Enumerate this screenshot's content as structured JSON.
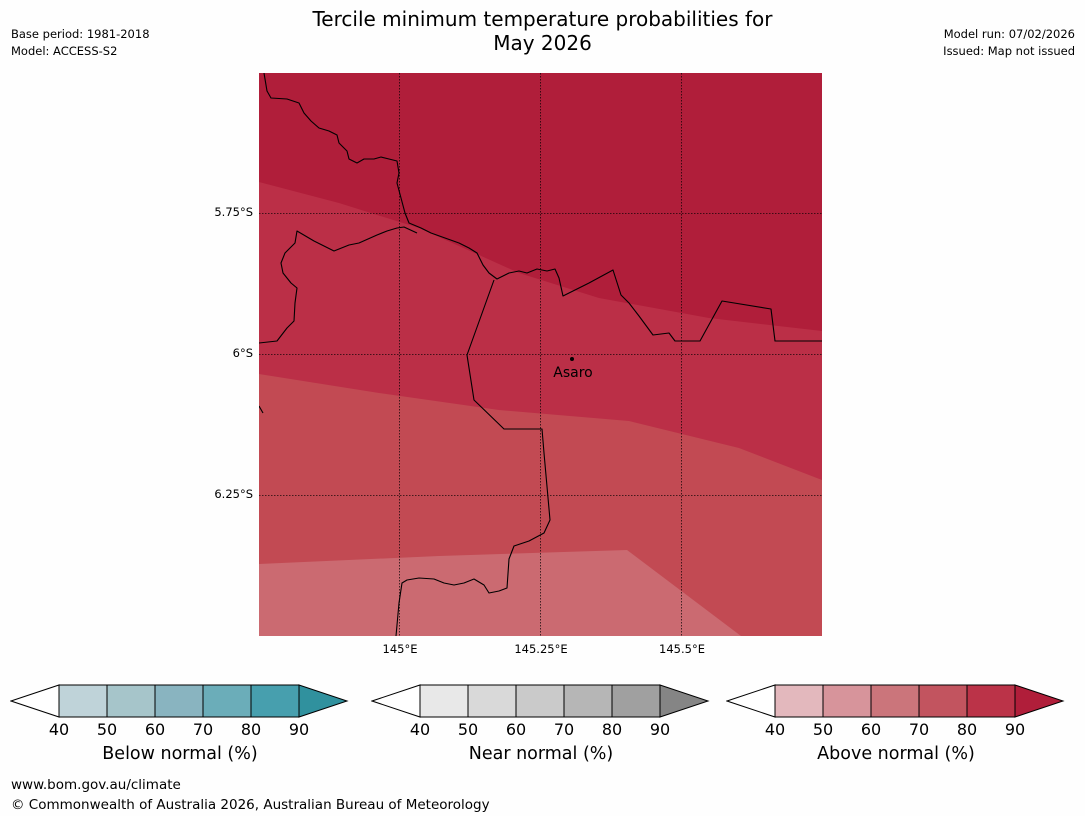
{
  "title_line1": "Tercile minimum temperature probabilities for",
  "title_line2": "May 2026",
  "meta_left": [
    "Base period: 1981-2018",
    "Model: ACCESS-S2"
  ],
  "meta_right": [
    "Model run: 07/02/2026",
    "Issued: Map not issued"
  ],
  "map": {
    "lat_labels": [
      "5.75°S",
      "6°S",
      "6.25°S"
    ],
    "lon_labels": [
      "145°E",
      "145.25°E",
      "145.5°E"
    ],
    "place": "Asaro",
    "colors": {
      "band_90": "#b01e3a",
      "band_80": "#bb2f47",
      "band_70": "#c24a53",
      "band_60": "#cb6a71"
    }
  },
  "colorbars": [
    {
      "title": "Below normal (%)",
      "ticks": [
        "40",
        "50",
        "60",
        "70",
        "80",
        "90"
      ],
      "colors": [
        "#ffffff",
        "#bfd3d9",
        "#a6c5ca",
        "#89b4c0",
        "#6badb9",
        "#479fae",
        "#30919e"
      ]
    },
    {
      "title": "Near normal (%)",
      "ticks": [
        "40",
        "50",
        "60",
        "70",
        "80",
        "90"
      ],
      "colors": [
        "#ffffff",
        "#e8e8e8",
        "#d9d9d9",
        "#cacaca",
        "#b6b6b6",
        "#a0a0a0",
        "#858585"
      ]
    },
    {
      "title": "Above normal (%)",
      "ticks": [
        "40",
        "50",
        "60",
        "70",
        "80",
        "90"
      ],
      "colors": [
        "#ffffff",
        "#e3b8bd",
        "#d7949b",
        "#cb757b",
        "#c2545f",
        "#bb3348",
        "#b01e3a"
      ]
    }
  ],
  "footer": {
    "url": "www.bom.gov.au/climate",
    "copyright": "© Commonwealth of Australia 2026, Australian Bureau of Meteorology"
  }
}
